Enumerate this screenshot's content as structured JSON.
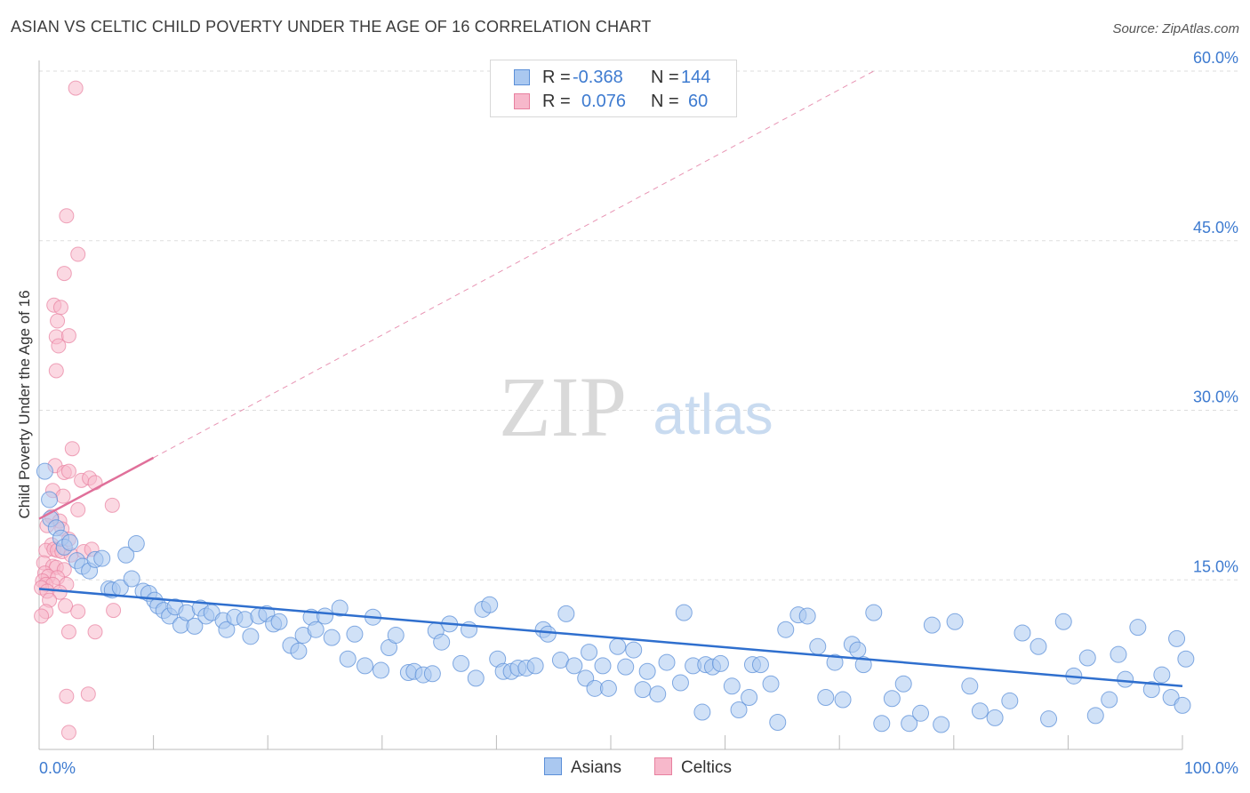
{
  "title": "ASIAN VS CELTIC CHILD POVERTY UNDER THE AGE OF 16 CORRELATION CHART",
  "source": "Source: ZipAtlas.com",
  "watermark": {
    "zip": "ZIP",
    "atlas": "atlas"
  },
  "legend": {
    "r_label": "R =",
    "n_label": "N =",
    "asians": {
      "r": "-0.368",
      "n": "144"
    },
    "celtics": {
      "r": "0.076",
      "n": "60"
    }
  },
  "bottom_legend": {
    "asians": "Asians",
    "celtics": "Celtics"
  },
  "colors": {
    "asian_fill": "#aac8f0",
    "asian_stroke": "#5b8fd8",
    "asian_line": "#2f6fce",
    "celtic_fill": "#f7b8cb",
    "celtic_stroke": "#e8809f",
    "celtic_line": "#e0709a",
    "axis_label": "#3e7bd0",
    "grid": "#dddddd"
  },
  "chart_data": {
    "type": "scatter",
    "title": "ASIAN VS CELTIC CHILD POVERTY UNDER THE AGE OF 16 CORRELATION CHART",
    "xlabel": "",
    "ylabel": "Child Poverty Under the Age of 16",
    "xlim": [
      0,
      100
    ],
    "ylim": [
      0,
      60
    ],
    "x_tick_labels": [
      "0.0%",
      "100.0%"
    ],
    "y_ticks": [
      15,
      30,
      45,
      60
    ],
    "y_tick_labels": [
      "15.0%",
      "30.0%",
      "45.0%",
      "60.0%"
    ],
    "grid": true,
    "series": [
      {
        "name": "Asians",
        "r": -0.368,
        "n": 144,
        "trend": {
          "x": [
            0,
            100
          ],
          "y": [
            14.2,
            5.6
          ]
        },
        "points": [
          [
            0.5,
            24.6
          ],
          [
            0.9,
            22.1
          ],
          [
            1.0,
            20.4
          ],
          [
            1.5,
            19.6
          ],
          [
            1.9,
            18.7
          ],
          [
            2.2,
            17.9
          ],
          [
            2.7,
            18.3
          ],
          [
            3.3,
            16.7
          ],
          [
            3.8,
            16.2
          ],
          [
            4.4,
            15.8
          ],
          [
            4.9,
            16.8
          ],
          [
            5.5,
            16.9
          ],
          [
            6.1,
            14.2
          ],
          [
            6.4,
            14.1
          ],
          [
            7.1,
            14.3
          ],
          [
            7.6,
            17.2
          ],
          [
            8.1,
            15.1
          ],
          [
            8.5,
            18.2
          ],
          [
            9.1,
            14.0
          ],
          [
            9.6,
            13.8
          ],
          [
            10.1,
            13.2
          ],
          [
            10.4,
            12.7
          ],
          [
            10.9,
            12.3
          ],
          [
            11.4,
            11.8
          ],
          [
            11.9,
            12.6
          ],
          [
            12.4,
            11.0
          ],
          [
            12.9,
            12.1
          ],
          [
            13.6,
            10.9
          ],
          [
            14.1,
            12.5
          ],
          [
            14.6,
            11.8
          ],
          [
            15.1,
            12.1
          ],
          [
            16.1,
            11.4
          ],
          [
            16.4,
            10.6
          ],
          [
            17.1,
            11.7
          ],
          [
            18.0,
            11.5
          ],
          [
            18.5,
            10.0
          ],
          [
            19.2,
            11.8
          ],
          [
            19.9,
            12.0
          ],
          [
            20.5,
            11.1
          ],
          [
            21.0,
            11.3
          ],
          [
            22.0,
            9.2
          ],
          [
            22.7,
            8.7
          ],
          [
            23.1,
            10.1
          ],
          [
            23.8,
            11.7
          ],
          [
            24.2,
            10.6
          ],
          [
            25.0,
            11.8
          ],
          [
            25.6,
            9.9
          ],
          [
            26.3,
            12.5
          ],
          [
            27.0,
            8.0
          ],
          [
            27.6,
            10.2
          ],
          [
            28.5,
            7.4
          ],
          [
            29.2,
            11.7
          ],
          [
            29.9,
            7.0
          ],
          [
            30.6,
            9.0
          ],
          [
            31.2,
            10.1
          ],
          [
            32.3,
            6.8
          ],
          [
            32.8,
            6.9
          ],
          [
            33.6,
            6.6
          ],
          [
            34.4,
            6.7
          ],
          [
            34.7,
            10.5
          ],
          [
            35.2,
            9.5
          ],
          [
            35.9,
            11.1
          ],
          [
            36.9,
            7.6
          ],
          [
            37.6,
            10.6
          ],
          [
            38.2,
            6.3
          ],
          [
            38.8,
            12.4
          ],
          [
            39.4,
            12.8
          ],
          [
            40.1,
            8.0
          ],
          [
            40.6,
            6.9
          ],
          [
            41.3,
            6.9
          ],
          [
            41.9,
            7.2
          ],
          [
            42.6,
            7.2
          ],
          [
            43.4,
            7.4
          ],
          [
            44.1,
            10.6
          ],
          [
            44.5,
            10.2
          ],
          [
            45.6,
            7.9
          ],
          [
            46.1,
            12.0
          ],
          [
            46.8,
            7.4
          ],
          [
            47.8,
            6.3
          ],
          [
            48.1,
            8.6
          ],
          [
            48.6,
            5.4
          ],
          [
            49.3,
            7.4
          ],
          [
            49.8,
            5.4
          ],
          [
            50.6,
            9.1
          ],
          [
            51.3,
            7.3
          ],
          [
            52.0,
            8.8
          ],
          [
            52.8,
            5.3
          ],
          [
            53.2,
            6.9
          ],
          [
            54.1,
            4.9
          ],
          [
            54.9,
            7.7
          ],
          [
            56.1,
            5.9
          ],
          [
            56.4,
            12.1
          ],
          [
            57.2,
            7.4
          ],
          [
            58.0,
            3.3
          ],
          [
            58.3,
            7.5
          ],
          [
            58.9,
            7.3
          ],
          [
            59.6,
            7.6
          ],
          [
            60.6,
            5.6
          ],
          [
            61.2,
            3.5
          ],
          [
            62.1,
            4.6
          ],
          [
            62.4,
            7.5
          ],
          [
            63.1,
            7.5
          ],
          [
            64.0,
            5.8
          ],
          [
            64.6,
            2.4
          ],
          [
            65.3,
            10.6
          ],
          [
            66.4,
            11.9
          ],
          [
            67.2,
            11.8
          ],
          [
            68.1,
            9.1
          ],
          [
            68.8,
            4.6
          ],
          [
            69.6,
            7.7
          ],
          [
            70.3,
            4.4
          ],
          [
            71.1,
            9.3
          ],
          [
            71.6,
            8.8
          ],
          [
            72.1,
            7.5
          ],
          [
            73.0,
            12.1
          ],
          [
            73.7,
            2.3
          ],
          [
            74.6,
            4.5
          ],
          [
            75.6,
            5.8
          ],
          [
            76.1,
            2.3
          ],
          [
            77.1,
            3.2
          ],
          [
            78.1,
            11.0
          ],
          [
            78.9,
            2.2
          ],
          [
            80.1,
            11.3
          ],
          [
            81.4,
            5.6
          ],
          [
            82.3,
            3.4
          ],
          [
            83.6,
            2.8
          ],
          [
            84.9,
            4.3
          ],
          [
            86.0,
            10.3
          ],
          [
            87.4,
            9.1
          ],
          [
            88.3,
            2.7
          ],
          [
            89.6,
            11.3
          ],
          [
            90.5,
            6.5
          ],
          [
            91.7,
            8.1
          ],
          [
            92.4,
            3.0
          ],
          [
            93.6,
            4.4
          ],
          [
            94.4,
            8.4
          ],
          [
            95.0,
            6.2
          ],
          [
            96.1,
            10.8
          ],
          [
            97.3,
            5.3
          ],
          [
            98.2,
            6.6
          ],
          [
            99.0,
            4.6
          ],
          [
            99.5,
            9.8
          ],
          [
            100.0,
            3.9
          ],
          [
            100.3,
            8.0
          ]
        ]
      },
      {
        "name": "Celtics",
        "r": 0.076,
        "n": 60,
        "trend": {
          "x": [
            0,
            10
          ],
          "y": [
            20.4,
            25.8
          ]
        },
        "trend_extended": {
          "x": [
            10,
            73
          ],
          "y": [
            25.8,
            60.0
          ]
        },
        "points": [
          [
            3.2,
            58.5
          ],
          [
            2.4,
            47.2
          ],
          [
            3.4,
            43.8
          ],
          [
            2.2,
            42.1
          ],
          [
            1.3,
            39.3
          ],
          [
            1.9,
            39.1
          ],
          [
            1.6,
            37.9
          ],
          [
            1.5,
            36.5
          ],
          [
            2.6,
            36.6
          ],
          [
            1.7,
            35.7
          ],
          [
            1.5,
            33.5
          ],
          [
            2.9,
            26.6
          ],
          [
            1.4,
            25.1
          ],
          [
            2.2,
            24.5
          ],
          [
            2.6,
            24.6
          ],
          [
            3.7,
            23.8
          ],
          [
            4.4,
            24.0
          ],
          [
            4.9,
            23.6
          ],
          [
            1.2,
            22.9
          ],
          [
            2.1,
            22.4
          ],
          [
            3.4,
            21.2
          ],
          [
            6.4,
            21.6
          ],
          [
            1.1,
            20.6
          ],
          [
            1.8,
            20.2
          ],
          [
            0.7,
            19.8
          ],
          [
            2.0,
            19.5
          ],
          [
            2.6,
            18.6
          ],
          [
            1.1,
            18.1
          ],
          [
            0.6,
            17.6
          ],
          [
            1.3,
            17.7
          ],
          [
            1.6,
            17.6
          ],
          [
            2.0,
            17.5
          ],
          [
            2.8,
            17.2
          ],
          [
            3.9,
            17.5
          ],
          [
            4.6,
            17.7
          ],
          [
            0.4,
            16.5
          ],
          [
            1.2,
            16.2
          ],
          [
            1.5,
            16.1
          ],
          [
            2.2,
            15.9
          ],
          [
            0.5,
            15.6
          ],
          [
            0.8,
            15.3
          ],
          [
            1.6,
            15.2
          ],
          [
            0.3,
            14.9
          ],
          [
            0.6,
            14.6
          ],
          [
            1.2,
            14.6
          ],
          [
            2.4,
            14.6
          ],
          [
            0.2,
            14.3
          ],
          [
            0.7,
            14.0
          ],
          [
            1.8,
            13.9
          ],
          [
            0.9,
            13.2
          ],
          [
            2.3,
            12.7
          ],
          [
            0.6,
            12.2
          ],
          [
            3.4,
            12.2
          ],
          [
            6.5,
            12.3
          ],
          [
            0.2,
            11.8
          ],
          [
            2.6,
            10.4
          ],
          [
            4.9,
            10.4
          ],
          [
            2.4,
            4.7
          ],
          [
            4.3,
            4.9
          ],
          [
            2.6,
            1.5
          ]
        ]
      }
    ]
  }
}
